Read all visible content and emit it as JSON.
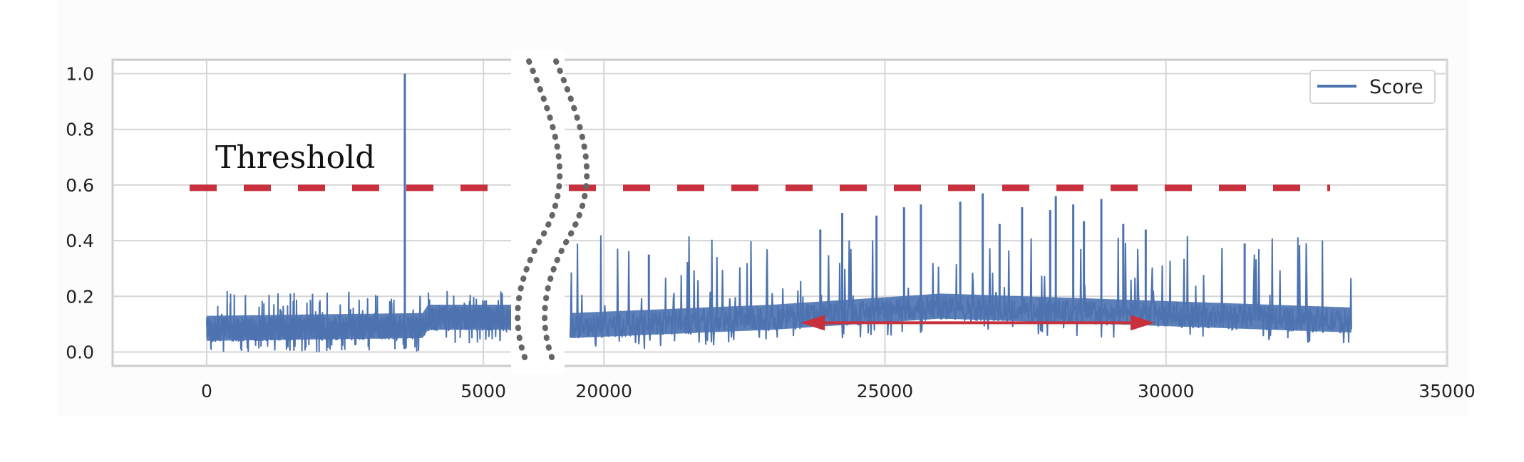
{
  "chart_data": {
    "type": "line",
    "broken_x_axis": true,
    "x_segments": [
      {
        "xlim": [
          -1700,
          5500
        ],
        "ticks": [
          0,
          5000
        ]
      },
      {
        "xlim": [
          19300,
          35000
        ],
        "ticks": [
          20000,
          25000,
          30000,
          35000
        ]
      }
    ],
    "ylim": [
      -0.05,
      1.05
    ],
    "yticks": [
      0.0,
      0.2,
      0.4,
      0.6,
      0.8,
      1.0
    ],
    "ytick_labels": [
      "0.0",
      "0.2",
      "0.4",
      "0.6",
      "0.8",
      "1.0"
    ],
    "xtick_labels": [
      "0",
      "5000",
      "20000",
      "25000",
      "30000",
      "35000"
    ],
    "grid": true,
    "legend_position": "top-right",
    "series": [
      {
        "name": "Score",
        "color": "#4c72b0",
        "segments": [
          {
            "x_start": 0,
            "x_end": 5500,
            "baseline": [
              [
                0,
                0.08
              ],
              [
                3900,
                0.09
              ],
              [
                4000,
                0.12
              ],
              [
                5500,
                0.12
              ]
            ],
            "typical_peak": 0.22
          },
          {
            "x_start": 19400,
            "x_end": 33300,
            "baseline": [
              [
                19400,
                0.09
              ],
              [
                23000,
                0.12
              ],
              [
                26000,
                0.16
              ],
              [
                29000,
                0.14
              ],
              [
                33300,
                0.11
              ]
            ],
            "typical_peak": 0.42
          }
        ],
        "spikes": [
          [
            3580,
            1.0
          ],
          [
            26740,
            0.57
          ],
          [
            28040,
            0.56
          ],
          [
            28850,
            0.55
          ],
          [
            26340,
            0.54
          ],
          [
            28350,
            0.53
          ],
          [
            25640,
            0.53
          ],
          [
            25340,
            0.52
          ],
          [
            27440,
            0.52
          ],
          [
            24240,
            0.5
          ],
          [
            24850,
            0.49
          ],
          [
            27940,
            0.51
          ],
          [
            28540,
            0.47
          ],
          [
            27040,
            0.46
          ],
          [
            29240,
            0.46
          ],
          [
            29640,
            0.44
          ],
          [
            23850,
            0.44
          ],
          [
            31400,
            0.39
          ],
          [
            20800,
            0.35
          ]
        ]
      }
    ],
    "annotations": [
      {
        "type": "hline",
        "y": 0.59,
        "style": "dashed",
        "color": "#c9303e",
        "label": "Threshold"
      },
      {
        "type": "double_arrow",
        "x_from": 23500,
        "x_to": 29800,
        "y": 0.105,
        "color": "#c9303e"
      }
    ]
  }
}
